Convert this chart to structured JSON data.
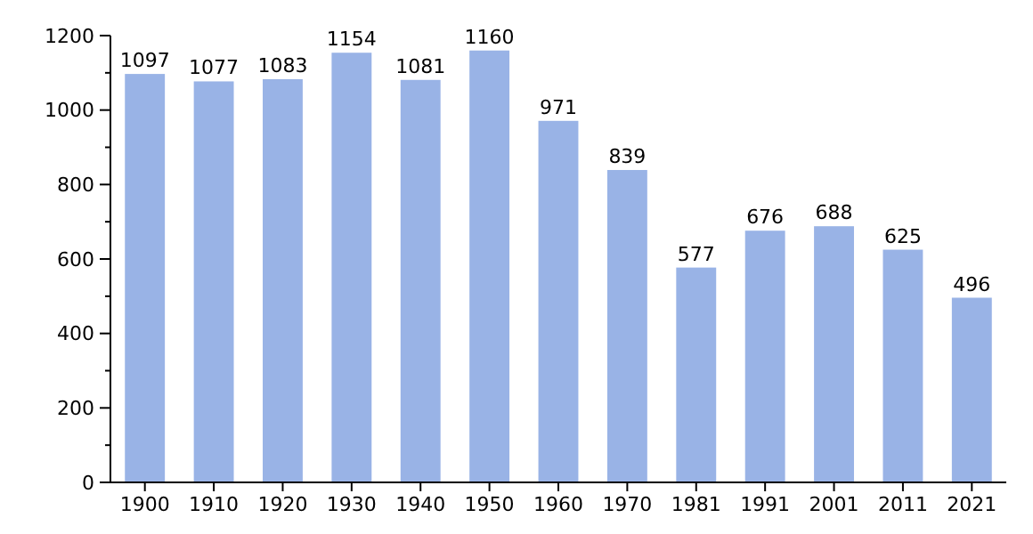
{
  "chart_data": {
    "type": "bar",
    "categories": [
      "1900",
      "1910",
      "1920",
      "1930",
      "1940",
      "1950",
      "1960",
      "1970",
      "1981",
      "1991",
      "2001",
      "2011",
      "2021"
    ],
    "values": [
      1097,
      1077,
      1083,
      1154,
      1081,
      1160,
      971,
      839,
      577,
      676,
      688,
      625,
      496
    ],
    "color": "#99b3e6",
    "data_labels": true,
    "ylim": [
      0,
      1200
    ],
    "yticks": [
      0,
      {
        "value": 100,
        "label": null
      },
      200,
      {
        "value": 300,
        "label": null
      },
      400,
      {
        "value": 500,
        "label": null
      },
      600,
      {
        "value": 700,
        "label": null
      },
      800,
      {
        "value": 900,
        "label": null
      },
      1000,
      {
        "value": 1100,
        "label": null
      },
      1200
    ],
    "grid": false
  }
}
